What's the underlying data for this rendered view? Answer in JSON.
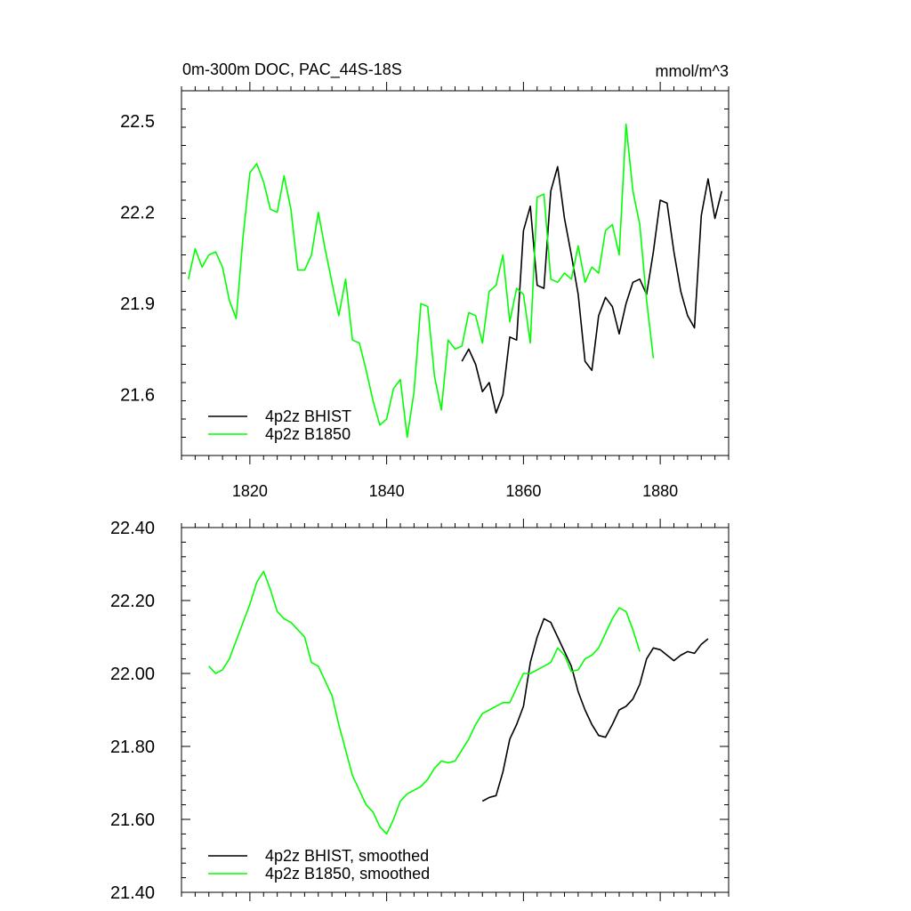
{
  "chart_data": [
    {
      "type": "line",
      "title": "0m-300m DOC, PAC_44S-18S",
      "units": "mmol/m^3",
      "xlim": [
        1810,
        1890
      ],
      "ylim": [
        21.4,
        22.6
      ],
      "x_ticks": [
        1820,
        1840,
        1860,
        1880
      ],
      "x_tick_labels": [
        "1820",
        "1840",
        "1860",
        "1880"
      ],
      "y_ticks": [
        21.6,
        21.9,
        22.2,
        22.5
      ],
      "y_tick_labels": [
        "21.6",
        "21.9",
        "22.2",
        "22.5"
      ],
      "legend_position": "bottom-left",
      "series": [
        {
          "name": "4p2z BHIST",
          "color": "#000000",
          "x": [
            1851,
            1852,
            1853,
            1854,
            1855,
            1856,
            1857,
            1858,
            1859,
            1860,
            1861,
            1862,
            1863,
            1864,
            1865,
            1866,
            1867,
            1868,
            1869,
            1870,
            1871,
            1872,
            1873,
            1874,
            1875,
            1876,
            1877,
            1878,
            1879,
            1880,
            1881,
            1882,
            1883,
            1884,
            1885,
            1886,
            1887,
            1888,
            1889
          ],
          "values": [
            21.71,
            21.75,
            21.7,
            21.61,
            21.64,
            21.54,
            21.6,
            21.79,
            21.78,
            22.14,
            22.22,
            21.96,
            21.95,
            22.27,
            22.35,
            22.18,
            22.06,
            21.93,
            21.71,
            21.68,
            21.86,
            21.92,
            21.89,
            21.8,
            21.9,
            21.97,
            21.98,
            21.93,
            22.07,
            22.24,
            22.23,
            22.07,
            21.94,
            21.86,
            21.82,
            22.19,
            22.31,
            22.18,
            22.27
          ]
        },
        {
          "name": "4p2z B1850",
          "color": "#00ff00",
          "x": [
            1811,
            1812,
            1813,
            1814,
            1815,
            1816,
            1817,
            1818,
            1819,
            1820,
            1821,
            1822,
            1823,
            1824,
            1825,
            1826,
            1827,
            1828,
            1829,
            1830,
            1831,
            1832,
            1833,
            1834,
            1835,
            1836,
            1837,
            1838,
            1839,
            1840,
            1841,
            1842,
            1843,
            1844,
            1845,
            1846,
            1847,
            1848,
            1849,
            1850,
            1851,
            1852,
            1853,
            1854,
            1855,
            1856,
            1857,
            1858,
            1859,
            1860,
            1861,
            1862,
            1863,
            1864,
            1865,
            1866,
            1867,
            1868,
            1869,
            1870,
            1871,
            1872,
            1873,
            1874,
            1875,
            1876,
            1877,
            1878,
            1879
          ],
          "values": [
            21.98,
            22.08,
            22.02,
            22.06,
            22.07,
            22.02,
            21.91,
            21.85,
            22.12,
            22.33,
            22.36,
            22.3,
            22.21,
            22.2,
            22.32,
            22.21,
            22.01,
            22.01,
            22.06,
            22.2,
            22.08,
            21.97,
            21.86,
            21.98,
            21.78,
            21.77,
            21.68,
            21.58,
            21.5,
            21.52,
            21.62,
            21.65,
            21.46,
            21.61,
            21.9,
            21.89,
            21.66,
            21.55,
            21.78,
            21.75,
            21.76,
            21.87,
            21.86,
            21.77,
            21.94,
            21.96,
            22.06,
            21.84,
            21.95,
            21.93,
            21.77,
            22.25,
            22.26,
            21.98,
            21.97,
            22.0,
            21.98,
            22.09,
            21.97,
            22.02,
            22.0,
            22.14,
            22.16,
            22.06,
            22.49,
            22.27,
            22.16,
            21.91,
            21.72
          ]
        }
      ]
    },
    {
      "type": "line",
      "xlim": [
        1810,
        1890
      ],
      "ylim": [
        21.4,
        22.4
      ],
      "x_ticks": [
        1820,
        1840,
        1860,
        1880
      ],
      "y_ticks": [
        21.4,
        21.6,
        21.8,
        22.0,
        22.2,
        22.4
      ],
      "y_tick_labels": [
        "21.40",
        "21.60",
        "21.80",
        "22.00",
        "22.20",
        "22.40"
      ],
      "legend_position": "bottom-left",
      "series": [
        {
          "name": "4p2z BHIST, smoothed",
          "color": "#000000",
          "x": [
            1854,
            1855,
            1856,
            1857,
            1858,
            1859,
            1860,
            1861,
            1862,
            1863,
            1864,
            1865,
            1866,
            1867,
            1868,
            1869,
            1870,
            1871,
            1872,
            1873,
            1874,
            1875,
            1876,
            1877,
            1878,
            1879,
            1880,
            1881,
            1882,
            1883,
            1884,
            1885,
            1886,
            1887
          ],
          "values": [
            21.65,
            21.66,
            21.665,
            21.73,
            21.82,
            21.86,
            21.91,
            22.03,
            22.1,
            22.15,
            22.14,
            22.1,
            22.06,
            22.02,
            21.95,
            21.9,
            21.86,
            21.83,
            21.825,
            21.86,
            21.9,
            21.91,
            21.93,
            21.97,
            22.04,
            22.07,
            22.065,
            22.05,
            22.035,
            22.05,
            22.06,
            22.055,
            22.08,
            22.095
          ]
        },
        {
          "name": "4p2z B1850, smoothed",
          "color": "#00ff00",
          "x": [
            1814,
            1815,
            1816,
            1817,
            1818,
            1819,
            1820,
            1821,
            1822,
            1823,
            1824,
            1825,
            1826,
            1827,
            1828,
            1829,
            1830,
            1831,
            1832,
            1833,
            1834,
            1835,
            1836,
            1837,
            1838,
            1839,
            1840,
            1841,
            1842,
            1843,
            1844,
            1845,
            1846,
            1847,
            1848,
            1849,
            1850,
            1851,
            1852,
            1853,
            1854,
            1855,
            1856,
            1857,
            1858,
            1859,
            1860,
            1861,
            1862,
            1863,
            1864,
            1865,
            1866,
            1867,
            1868,
            1869,
            1870,
            1871,
            1872,
            1873,
            1874,
            1875,
            1876,
            1877
          ],
          "values": [
            22.02,
            22.0,
            22.01,
            22.04,
            22.09,
            22.14,
            22.19,
            22.25,
            22.28,
            22.23,
            22.17,
            22.15,
            22.14,
            22.12,
            22.1,
            22.03,
            22.02,
            21.98,
            21.94,
            21.86,
            21.79,
            21.72,
            21.68,
            21.64,
            21.62,
            21.58,
            21.56,
            21.6,
            21.65,
            21.67,
            21.68,
            21.69,
            21.71,
            21.74,
            21.76,
            21.755,
            21.76,
            21.79,
            21.82,
            21.86,
            21.89,
            21.9,
            21.91,
            21.92,
            21.92,
            21.96,
            22.0,
            22.0,
            22.01,
            22.02,
            22.03,
            22.07,
            22.05,
            22.005,
            22.01,
            22.04,
            22.05,
            22.07,
            22.11,
            22.15,
            22.18,
            22.17,
            22.12,
            22.06
          ]
        }
      ]
    }
  ]
}
